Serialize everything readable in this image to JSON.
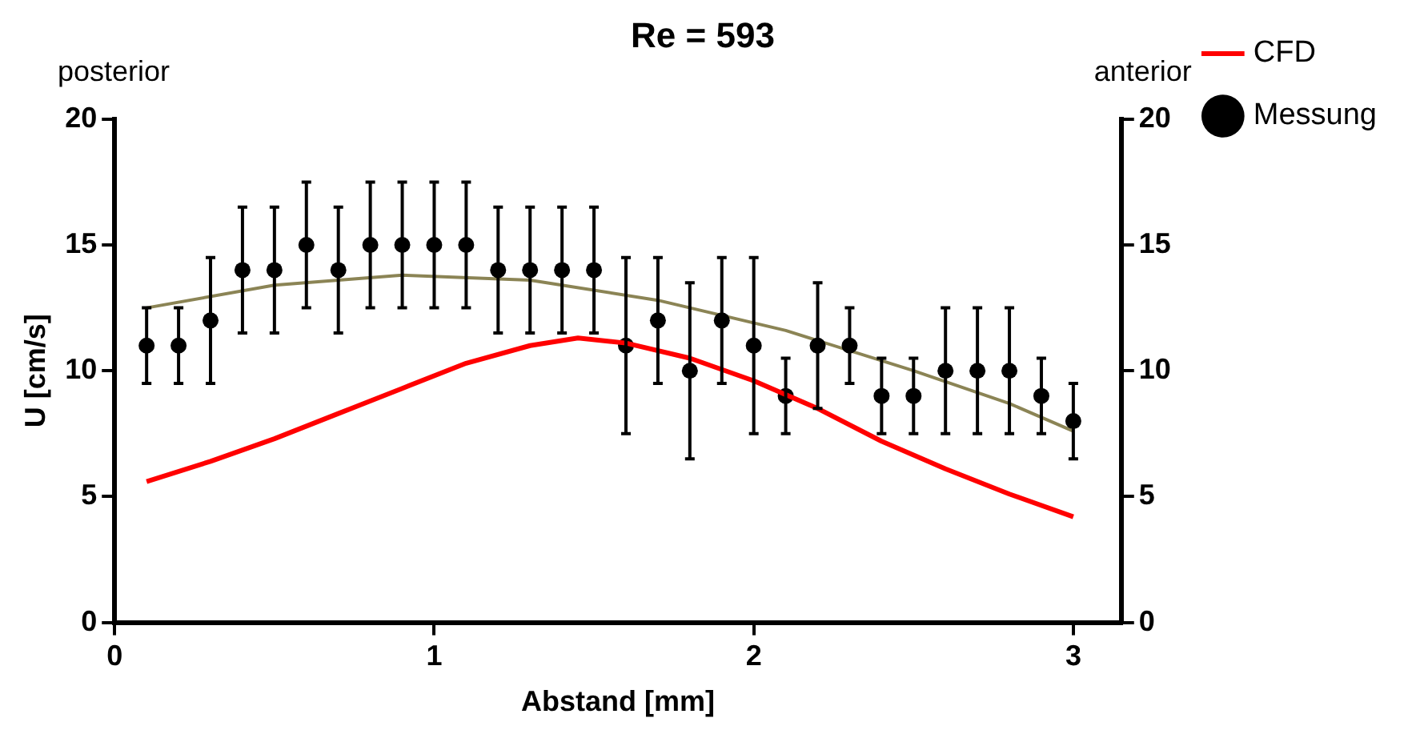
{
  "chart_data": {
    "type": "scatter",
    "title": "Re = 593",
    "xlabel": "Abstand [mm]",
    "ylabel": "U [cm/s]",
    "annotations": [
      "posterior",
      "anterior"
    ],
    "xlim": [
      0,
      3.15
    ],
    "xticks": [
      0,
      1,
      2,
      3
    ],
    "ylim": [
      0,
      20
    ],
    "yticks": [
      0,
      5,
      10,
      15,
      20
    ],
    "y2lim": [
      0,
      20
    ],
    "y2ticks": [
      0,
      5,
      10,
      15,
      20
    ],
    "grid": false,
    "legend": "top right",
    "marker": "circle",
    "series": [
      {
        "name": "CFD",
        "type": "line",
        "color": "#ff0000",
        "marker": "none",
        "x": [
          0.1,
          0.3,
          0.5,
          0.7,
          0.9,
          1.1,
          1.3,
          1.45,
          1.6,
          1.8,
          2.0,
          2.2,
          2.4,
          2.6,
          2.8,
          3.0
        ],
        "values": [
          5.6,
          6.4,
          7.3,
          8.3,
          9.3,
          10.3,
          11.0,
          11.3,
          11.1,
          10.5,
          9.6,
          8.5,
          7.2,
          6.1,
          5.1,
          4.2
        ]
      },
      {
        "name": "Messung",
        "color": "#000000",
        "x": [
          0.1,
          0.2,
          0.3,
          0.4,
          0.5,
          0.6,
          0.7,
          0.8,
          0.9,
          1.0,
          1.1,
          1.2,
          1.3,
          1.4,
          1.5,
          1.6,
          1.7,
          1.8,
          1.9,
          2.0,
          2.1,
          2.2,
          2.3,
          2.4,
          2.5,
          2.6,
          2.7,
          2.8,
          2.9,
          3.0
        ],
        "values": [
          11,
          11,
          12,
          14,
          14,
          15,
          14,
          15,
          15,
          15,
          15,
          14,
          14,
          14,
          14,
          11,
          12,
          10,
          12,
          11,
          9,
          11,
          11,
          9,
          9,
          10,
          10,
          10,
          9,
          8
        ],
        "errors": [
          1.5,
          1.5,
          2.5,
          2.5,
          2.5,
          2.5,
          2.5,
          2.5,
          2.5,
          2.5,
          2.5,
          2.5,
          2.5,
          2.5,
          2.5,
          3.5,
          2.5,
          3.5,
          2.5,
          3.5,
          1.5,
          2.5,
          1.5,
          1.5,
          1.5,
          2.5,
          2.5,
          2.5,
          1.5,
          1.5
        ]
      },
      {
        "type": "line",
        "color": "#8b8455",
        "marker": "none",
        "x": [
          0.1,
          0.5,
          0.9,
          1.3,
          1.7,
          2.1,
          2.5,
          2.8,
          3.0
        ],
        "values": [
          12.5,
          13.4,
          13.8,
          13.6,
          12.8,
          11.6,
          10.0,
          8.7,
          7.6
        ]
      }
    ]
  }
}
